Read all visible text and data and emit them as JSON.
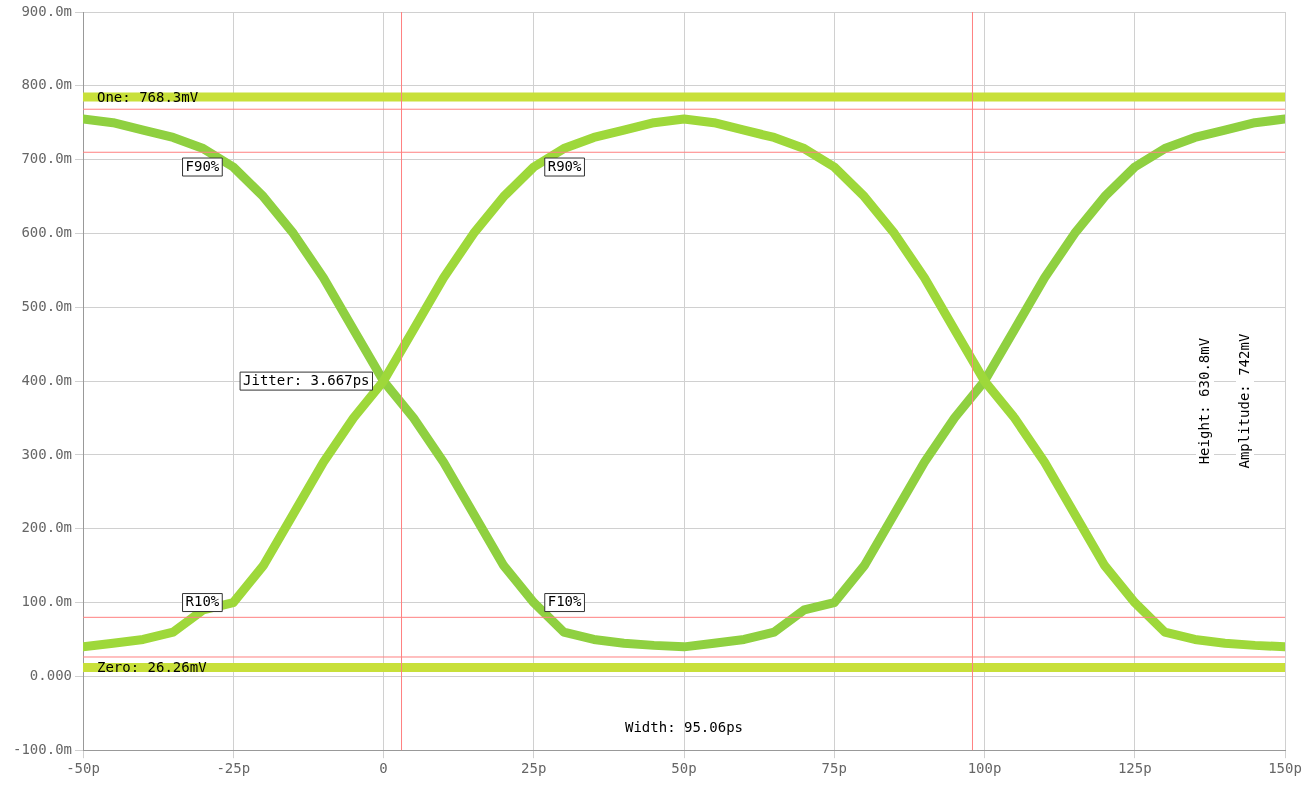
{
  "chart_data": {
    "type": "line",
    "x": [
      -50,
      -45,
      -40,
      -35,
      -30,
      -25,
      -20,
      -15,
      -10,
      -5,
      0,
      5,
      10,
      15,
      20,
      25,
      30,
      35,
      40,
      45,
      50,
      55,
      60,
      65,
      70,
      75,
      80,
      85,
      90,
      95,
      100,
      105,
      110,
      115,
      120,
      125,
      130,
      135,
      140,
      145,
      150
    ],
    "series": [
      {
        "color": "#9ed83a",
        "values": [
          40,
          45,
          50,
          60,
          90,
          100,
          150,
          220,
          290,
          350,
          400,
          470,
          540,
          600,
          650,
          690,
          715,
          730,
          740,
          750,
          755,
          750,
          740,
          730,
          715,
          690,
          650,
          600,
          540,
          470,
          400,
          350,
          290,
          220,
          150,
          100,
          60,
          50,
          45,
          42,
          40
        ]
      },
      {
        "color": "#8fd040",
        "values": [
          755,
          750,
          740,
          730,
          715,
          690,
          650,
          600,
          540,
          470,
          400,
          350,
          290,
          220,
          150,
          100,
          60,
          50,
          45,
          42,
          40,
          45,
          50,
          60,
          90,
          100,
          150,
          220,
          290,
          350,
          400,
          470,
          540,
          600,
          650,
          690,
          715,
          730,
          740,
          750,
          755
        ]
      },
      {
        "color": "#c8e03a",
        "values": [
          785,
          785,
          785,
          785,
          785,
          785,
          785,
          785,
          785,
          785,
          785,
          785,
          785,
          785,
          785,
          785,
          785,
          785,
          785,
          785,
          785,
          785,
          785,
          785,
          785,
          785,
          785,
          785,
          785,
          785,
          785,
          785,
          785,
          785,
          785,
          785,
          785,
          785,
          785,
          785,
          785
        ]
      },
      {
        "color": "#c8e03a",
        "values": [
          12,
          12,
          12,
          12,
          12,
          12,
          12,
          12,
          12,
          12,
          12,
          12,
          12,
          12,
          12,
          12,
          12,
          12,
          12,
          12,
          12,
          12,
          12,
          12,
          12,
          12,
          12,
          12,
          12,
          12,
          12,
          12,
          12,
          12,
          12,
          12,
          12,
          12,
          12,
          12,
          12
        ]
      }
    ],
    "xlim": [
      -50,
      150
    ],
    "ylim": [
      -100,
      900
    ],
    "xticks": [
      {
        "value": -50,
        "label": "-50p"
      },
      {
        "value": -25,
        "label": "-25p"
      },
      {
        "value": 0,
        "label": "0"
      },
      {
        "value": 25,
        "label": "25p"
      },
      {
        "value": 50,
        "label": "50p"
      },
      {
        "value": 75,
        "label": "75p"
      },
      {
        "value": 100,
        "label": "100p"
      },
      {
        "value": 125,
        "label": "125p"
      },
      {
        "value": 150,
        "label": "150p"
      }
    ],
    "yticks": [
      {
        "value": -100,
        "label": "-100.0m"
      },
      {
        "value": 0,
        "label": "0.000"
      },
      {
        "value": 100,
        "label": "100.0m"
      },
      {
        "value": 200,
        "label": "200.0m"
      },
      {
        "value": 300,
        "label": "300.0m"
      },
      {
        "value": 400,
        "label": "400.0m"
      },
      {
        "value": 500,
        "label": "500.0m"
      },
      {
        "value": 600,
        "label": "600.0m"
      },
      {
        "value": 700,
        "label": "700.0m"
      },
      {
        "value": 800,
        "label": "800.0m"
      },
      {
        "value": 900,
        "label": "900.0m"
      }
    ],
    "grid": true,
    "legend": false,
    "marker": "none",
    "line_style": "solid",
    "ref_lines": [
      {
        "axis": "y",
        "value": 768.3,
        "label": "One: 768.3mV",
        "color": "#ff8080"
      },
      {
        "axis": "y",
        "value": 26.26,
        "label": "Zero: 26.26mV",
        "color": "#ff8080"
      },
      {
        "axis": "x",
        "value": 3,
        "color": "#ff8080"
      },
      {
        "axis": "x",
        "value": 98,
        "color": "#ff8080"
      },
      {
        "axis": "y",
        "value": 710,
        "color": "#ff8080"
      },
      {
        "axis": "y",
        "value": 80,
        "color": "#ff8080"
      }
    ],
    "annotations": [
      {
        "text": "F90%",
        "x": -25,
        "y": 690
      },
      {
        "text": "R90%",
        "x": 25,
        "y": 690
      },
      {
        "text": "R10%",
        "x": -25,
        "y": 100
      },
      {
        "text": "F10%",
        "x": 25,
        "y": 100
      },
      {
        "text": "Jitter: 3.667ps",
        "x": 0,
        "y": 400
      },
      "Width: 95.06ps",
      "Height: 630.8mV",
      "Amplitude: 742mV"
    ]
  }
}
